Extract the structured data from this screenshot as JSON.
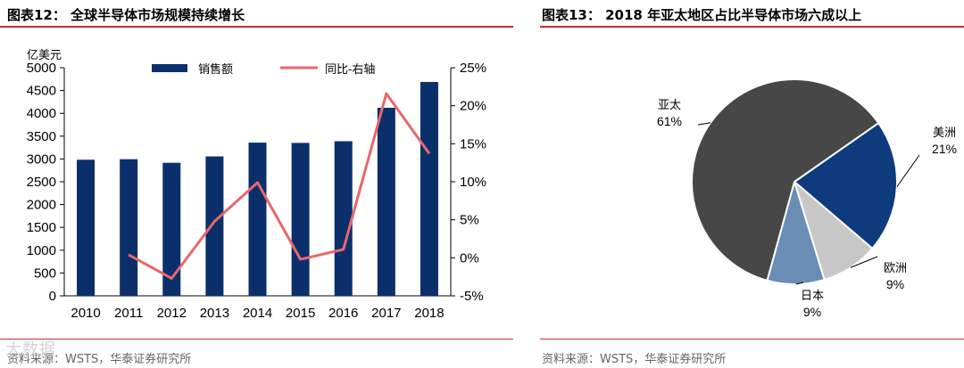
{
  "left_title": "图表12：  全球半导体市场规模持续增长",
  "right_title": "图表13：  2018 年亚太地区占比半导体市场六成以上",
  "left_source": "资料来源：WSTS，华泰证券研究所",
  "right_source": "资料来源：WSTS，华泰证券研究所",
  "watermark": "大数据",
  "colors": {
    "bar": "#0b2f6b",
    "line": "#e8676b",
    "rule": "#c0322b",
    "asia": "#474747",
    "america": "#0d3b7e",
    "europe": "#c7c7c7",
    "japan": "#6a8db5"
  },
  "chart_data": [
    {
      "type": "bar",
      "title": "全球半导体市场规模持续增长",
      "categories": [
        "2010",
        "2011",
        "2012",
        "2013",
        "2014",
        "2015",
        "2016",
        "2017",
        "2018"
      ],
      "ylabel": "亿美元",
      "ylim": [
        0,
        5000
      ],
      "yticks": [
        "0",
        "500",
        "1000",
        "1500",
        "2000",
        "2500",
        "3000",
        "3500",
        "4000",
        "4500",
        "5000"
      ],
      "y2lim": [
        -5,
        25
      ],
      "y2ticks": [
        "-5%",
        "0%",
        "5%",
        "10%",
        "15%",
        "20%",
        "25%"
      ],
      "series": [
        {
          "name": "销售额",
          "type": "bar",
          "axis": "left",
          "values": [
            2983,
            2995,
            2916,
            3056,
            3358,
            3352,
            3389,
            4122,
            4688
          ]
        },
        {
          "name": "同比-右轴",
          "type": "line",
          "axis": "right",
          "values": [
            null,
            0.4,
            -2.7,
            4.8,
            9.9,
            -0.2,
            1.1,
            21.6,
            13.7
          ]
        }
      ]
    },
    {
      "type": "pie",
      "title": "2018 年亚太地区占比半导体市场六成以上",
      "slices": [
        {
          "name": "亚太",
          "value": 61,
          "label": "61%"
        },
        {
          "name": "美洲",
          "value": 21,
          "label": "21%"
        },
        {
          "name": "欧洲",
          "value": 9,
          "label": "9%"
        },
        {
          "name": "日本",
          "value": 9,
          "label": "9%"
        }
      ]
    }
  ]
}
